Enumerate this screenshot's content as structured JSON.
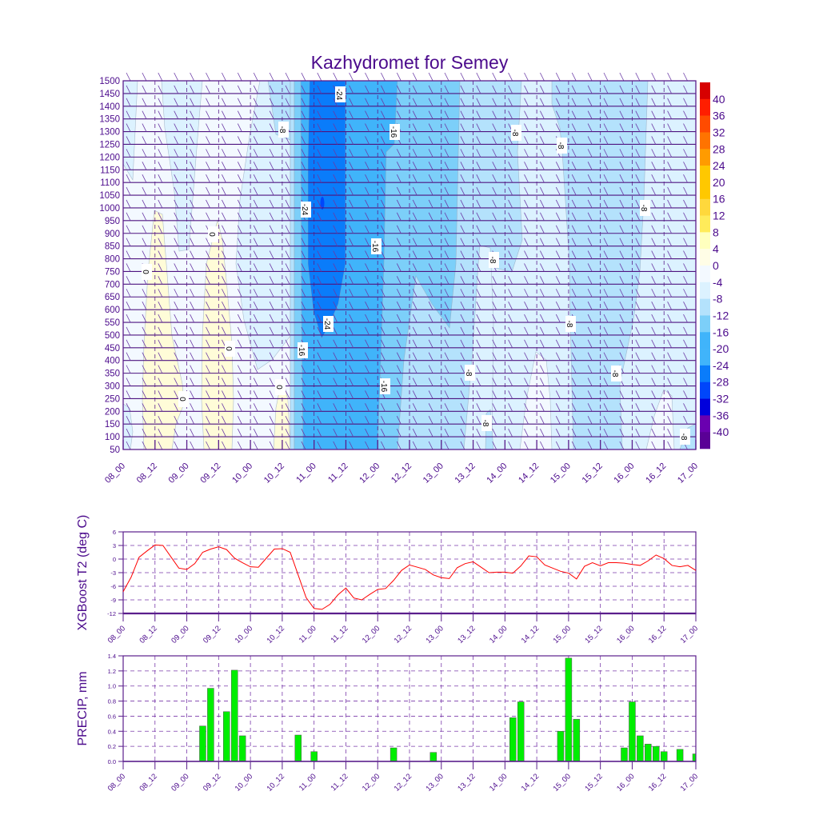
{
  "title": "Kazhydromet for Semey",
  "colors": {
    "text": "#4b0a8c",
    "grid": "#5a1e8c",
    "line": "#ff0000",
    "bar": "#00ee00"
  },
  "chart_data": [
    {
      "type": "heatmap",
      "subtype": "filled-contour with wind barbs",
      "title": "Kazhydromet for Semey",
      "xlabel": "",
      "ylabel": "",
      "x_tick_labels": [
        "08_00",
        "08_12",
        "09_00",
        "09_12",
        "10_00",
        "10_12",
        "11_00",
        "11_12",
        "12_00",
        "12_12",
        "13_00",
        "13_12",
        "14_00",
        "14_12",
        "15_00",
        "15_12",
        "16_00",
        "16_12",
        "17_00"
      ],
      "y_tick_labels": [
        "50",
        "100",
        "150",
        "200",
        "250",
        "300",
        "350",
        "400",
        "450",
        "500",
        "550",
        "600",
        "650",
        "700",
        "750",
        "800",
        "850",
        "900",
        "950",
        "1000",
        "1050",
        "1100",
        "1150",
        "1200",
        "1250",
        "1300",
        "1350",
        "1400",
        "1450",
        "1500"
      ],
      "ylim": [
        50,
        1500
      ],
      "colorbar": {
        "labels": [
          "40",
          "36",
          "32",
          "28",
          "24",
          "20",
          "16",
          "12",
          "8",
          "4",
          "0",
          "-4",
          "-8",
          "-12",
          "-16",
          "-20",
          "-24",
          "-28",
          "-32",
          "-36",
          "-40"
        ],
        "colors": [
          "#d70000",
          "#ff1e00",
          "#ff4b00",
          "#ff7300",
          "#ff9b00",
          "#ffc800",
          "#ffc800",
          "#ffd83c",
          "#ffeb5a",
          "#ffffbe",
          "#fffde6",
          "#f3f9ff",
          "#dcf2ff",
          "#b4e2fc",
          "#7ccff9",
          "#40b4fa",
          "#40b4fa",
          "#0a7cfa",
          "#0046fa",
          "#0000dc",
          "#6a00b0",
          "#5a0096"
        ]
      },
      "contour_labels": [
        "-24",
        "-8",
        "-16",
        "-8",
        "-8",
        "-24",
        "-8",
        "0",
        "-16",
        "-8",
        "0",
        "-24",
        "-8",
        "0",
        "-16",
        "-8",
        "-8",
        "0",
        "-16",
        "0",
        "-8",
        "-8"
      ]
    },
    {
      "type": "line",
      "ylabel": "XGBoost T2 (deg C)",
      "ylim": [
        -12,
        6
      ],
      "y_tick_labels": [
        "6",
        "3",
        "0",
        "-3",
        "-6",
        "-9",
        "-12"
      ],
      "x_tick_labels": [
        "08_00",
        "08_12",
        "09_00",
        "09_12",
        "10_00",
        "10_12",
        "11_00",
        "11_12",
        "12_00",
        "12_12",
        "13_00",
        "13_12",
        "14_00",
        "14_12",
        "15_00",
        "15_12",
        "16_00",
        "16_12",
        "17_00"
      ],
      "x_hours_step": 3,
      "values": [
        -7.2,
        -4.0,
        0.4,
        1.8,
        3.1,
        3.0,
        0.5,
        -2.0,
        -2.3,
        -1.0,
        1.5,
        2.2,
        2.7,
        2.1,
        0.2,
        -0.8,
        -1.7,
        -1.8,
        0.2,
        2.2,
        2.3,
        1.5,
        -3.5,
        -8.5,
        -10.9,
        -11.1,
        -10.0,
        -7.9,
        -6.4,
        -8.6,
        -9.0,
        -7.8,
        -6.7,
        -6.5,
        -4.7,
        -2.5,
        -1.3,
        -1.8,
        -2.3,
        -3.5,
        -4.1,
        -4.3,
        -1.9,
        -1.0,
        -0.6,
        -1.8,
        -3.0,
        -2.9,
        -2.9,
        -3.1,
        -1.5,
        0.7,
        0.5,
        -1.3,
        -2.0,
        -2.7,
        -3.1,
        -4.4,
        -1.6,
        -0.8,
        -1.5,
        -0.8,
        -0.8,
        -0.9,
        -1.2,
        -1.4,
        -0.4,
        0.9,
        0.1,
        -1.4,
        -1.7,
        -1.4,
        -2.5
      ]
    },
    {
      "type": "bar",
      "ylabel": "PRECIP, mm",
      "ylim": [
        0,
        1.4
      ],
      "y_tick_labels": [
        "0.0",
        "0.2",
        "0.4",
        "0.6",
        "0.8",
        "1.0",
        "1.2",
        "1.4"
      ],
      "x_tick_labels": [
        "08_00",
        "08_12",
        "09_00",
        "09_12",
        "10_00",
        "10_12",
        "11_00",
        "11_12",
        "12_00",
        "12_12",
        "13_00",
        "13_12",
        "14_00",
        "14_12",
        "15_00",
        "15_12",
        "16_00",
        "16_12",
        "17_00"
      ],
      "x_hours": [
        30,
        33,
        39,
        42,
        45,
        66,
        72,
        102,
        117,
        147,
        150,
        165,
        168,
        171,
        189,
        192,
        195,
        198,
        201,
        204,
        210,
        216
      ],
      "values": [
        0.47,
        0.97,
        0.66,
        1.21,
        0.34,
        0.35,
        0.13,
        0.18,
        0.12,
        0.58,
        0.79,
        0.4,
        1.37,
        0.56,
        0.18,
        0.79,
        0.34,
        0.23,
        0.2,
        0.13,
        0.16,
        0.1
      ]
    }
  ]
}
